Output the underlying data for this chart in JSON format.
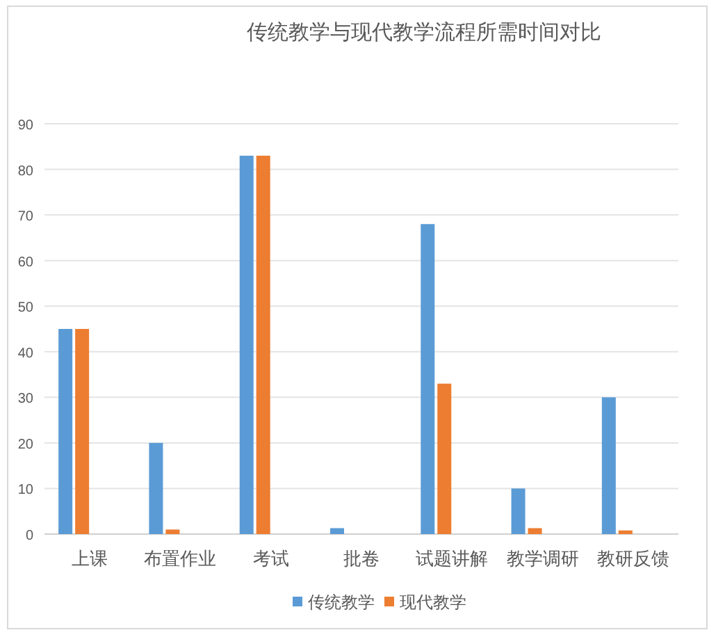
{
  "chart_data": {
    "type": "bar",
    "title": "传统教学与现代教学流程所需时间对比",
    "categories": [
      "上课",
      "布置作业",
      "考试",
      "批卷",
      "试题讲解",
      "教学调研",
      "教研反馈"
    ],
    "series": [
      {
        "name": "传统教学",
        "color": "#5b9bd5",
        "values": [
          45,
          20,
          83,
          1.3,
          68,
          10,
          30
        ]
      },
      {
        "name": "现代教学",
        "color": "#ed7d31",
        "values": [
          45,
          1,
          83,
          0,
          33,
          1.3,
          0.8
        ]
      }
    ],
    "ylim": [
      0,
      90
    ],
    "yticks": [
      0,
      10,
      20,
      30,
      40,
      50,
      60,
      70,
      80,
      90
    ],
    "grid": "y",
    "legend": "bottom"
  }
}
